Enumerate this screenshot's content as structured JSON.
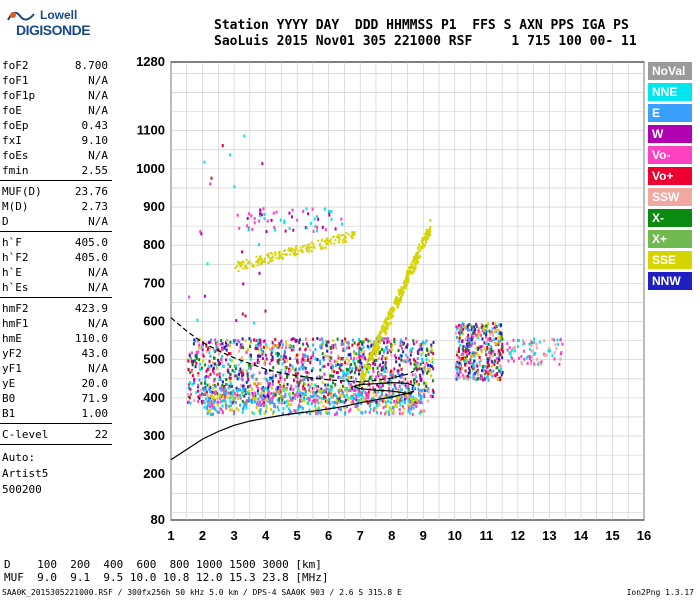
{
  "logo": {
    "line1": "Lowell",
    "line2": "DIGISONDE"
  },
  "header": {
    "row1": "Station YYYY DAY  DDD HHMMSS P1  FFS S AXN PPS IGA PS",
    "row2": "SaoLuis 2015 Nov01 305 221000 RSF     1 715 100 00- 11"
  },
  "params": [
    {
      "name": "foF2",
      "value": "8.700"
    },
    {
      "name": "foF1",
      "value": "N/A"
    },
    {
      "name": "foF1p",
      "value": "N/A"
    },
    {
      "name": "foE",
      "value": "N/A"
    },
    {
      "name": "foEp",
      "value": "0.43"
    },
    {
      "name": "fxI",
      "value": "9.10"
    },
    {
      "name": "foEs",
      "value": "N/A"
    },
    {
      "name": "fmin",
      "value": "2.55"
    },
    {
      "name": "MUF(D)",
      "value": "23.76"
    },
    {
      "name": "M(D)",
      "value": "2.73"
    },
    {
      "name": "D",
      "value": "N/A"
    },
    {
      "name": "h`F",
      "value": "405.0"
    },
    {
      "name": "h`F2",
      "value": "405.0"
    },
    {
      "name": "h`E",
      "value": "N/A"
    },
    {
      "name": "h`Es",
      "value": "N/A"
    },
    {
      "name": "hmF2",
      "value": "423.9"
    },
    {
      "name": "hmF1",
      "value": "N/A"
    },
    {
      "name": "hmE",
      "value": "110.0"
    },
    {
      "name": "yF2",
      "value": "43.0"
    },
    {
      "name": "yF1",
      "value": "N/A"
    },
    {
      "name": "yE",
      "value": "20.0"
    },
    {
      "name": "B0",
      "value": "71.9"
    },
    {
      "name": "B1",
      "value": "1.00"
    },
    {
      "name": "C-level",
      "value": "22"
    }
  ],
  "auto": {
    "line1": "Auto:",
    "line2": "Artist5",
    "line3": "500200"
  },
  "legend": [
    {
      "label": "NoVal",
      "color": "#9a9a9a"
    },
    {
      "label": "NNE",
      "color": "#00e5ee"
    },
    {
      "label": "E",
      "color": "#3aa0ff"
    },
    {
      "label": "W",
      "color": "#b000b0"
    },
    {
      "label": "Vo-",
      "color": "#ff40c0"
    },
    {
      "label": "Vo+",
      "color": "#ee0030"
    },
    {
      "label": "SSW",
      "color": "#f0a8a0"
    },
    {
      "label": "X-",
      "color": "#0a8a10"
    },
    {
      "label": "X+",
      "color": "#70b850"
    },
    {
      "label": "SSE",
      "color": "#d4d400"
    },
    {
      "label": "NNW",
      "color": "#2020c0"
    }
  ],
  "dtable": {
    "row1": "D    100  200  400  600  800 1000 1500 3000 [km]",
    "row2": "MUF  9.0  9.1  9.5 10.0 10.8 12.0 15.3 23.8 [MHz]"
  },
  "footer": {
    "left": "SAA0K_2015305221000.RSF / 300fx256h 50 kHz 5.0 km / DPS-4 SAA0K 903 / 2.6 S 315.8 E",
    "right": "Ion2Png 1.3.17"
  },
  "chart_data": {
    "type": "scatter",
    "title": "",
    "xlabel": "",
    "ylabel": "",
    "xlim": [
      1,
      16
    ],
    "ylim": [
      80,
      1280
    ],
    "x_ticks": [
      1,
      2,
      3,
      4,
      5,
      6,
      7,
      8,
      9,
      10,
      11,
      12,
      13,
      14,
      15,
      16
    ],
    "y_ticks": [
      80,
      200,
      300,
      400,
      500,
      600,
      700,
      800,
      900,
      1000,
      1100,
      1280
    ],
    "grid": true,
    "traces": {
      "dashed_profile": [
        [
          1.0,
          610
        ],
        [
          1.5,
          575
        ],
        [
          2.0,
          545
        ],
        [
          2.6,
          520
        ],
        [
          3.0,
          505
        ],
        [
          3.5,
          490
        ],
        [
          4.0,
          475
        ],
        [
          4.5,
          465
        ],
        [
          5.0,
          458
        ],
        [
          5.5,
          452
        ],
        [
          6.0,
          447
        ],
        [
          6.5,
          444
        ],
        [
          7.0,
          442
        ],
        [
          7.5,
          446
        ],
        [
          8.0,
          452
        ],
        [
          8.5,
          462
        ],
        [
          8.7,
          470
        ]
      ],
      "solid_profile": [
        [
          1.0,
          238
        ],
        [
          1.5,
          265
        ],
        [
          2.0,
          292
        ],
        [
          2.5,
          312
        ],
        [
          3.0,
          328
        ],
        [
          3.5,
          339
        ],
        [
          4.0,
          347
        ],
        [
          4.5,
          354
        ],
        [
          5.0,
          360
        ],
        [
          5.5,
          365
        ],
        [
          6.0,
          371
        ],
        [
          6.5,
          378
        ],
        [
          7.0,
          387
        ],
        [
          7.5,
          395
        ],
        [
          8.0,
          402
        ],
        [
          8.5,
          412
        ],
        [
          8.7,
          418
        ],
        [
          8.6,
          410
        ],
        [
          8.0,
          418
        ],
        [
          7.5,
          420
        ],
        [
          7.0,
          424
        ],
        [
          6.8,
          430
        ],
        [
          7.0,
          435
        ],
        [
          7.5,
          437
        ],
        [
          8.0,
          440
        ],
        [
          8.5,
          438
        ],
        [
          8.7,
          432
        ]
      ]
    },
    "regions": [
      {
        "name": "o-trace band",
        "x": [
          1.5,
          9.3
        ],
        "y": [
          380,
          640
        ]
      },
      {
        "name": "x-trace band",
        "x": [
          2.0,
          9.0
        ],
        "y": [
          360,
          450
        ]
      },
      {
        "name": "rising SSE trace",
        "x": [
          7.0,
          9.2
        ],
        "y": [
          450,
          870
        ]
      },
      {
        "name": "second-hop SSE",
        "x": [
          3.0,
          6.8
        ],
        "y": [
          740,
          880
        ]
      },
      {
        "name": "oblique cluster",
        "x": [
          10.0,
          11.5
        ],
        "y": [
          460,
          600
        ]
      },
      {
        "name": "far cluster",
        "x": [
          11.5,
          13.5
        ],
        "y": [
          490,
          560
        ]
      }
    ]
  }
}
